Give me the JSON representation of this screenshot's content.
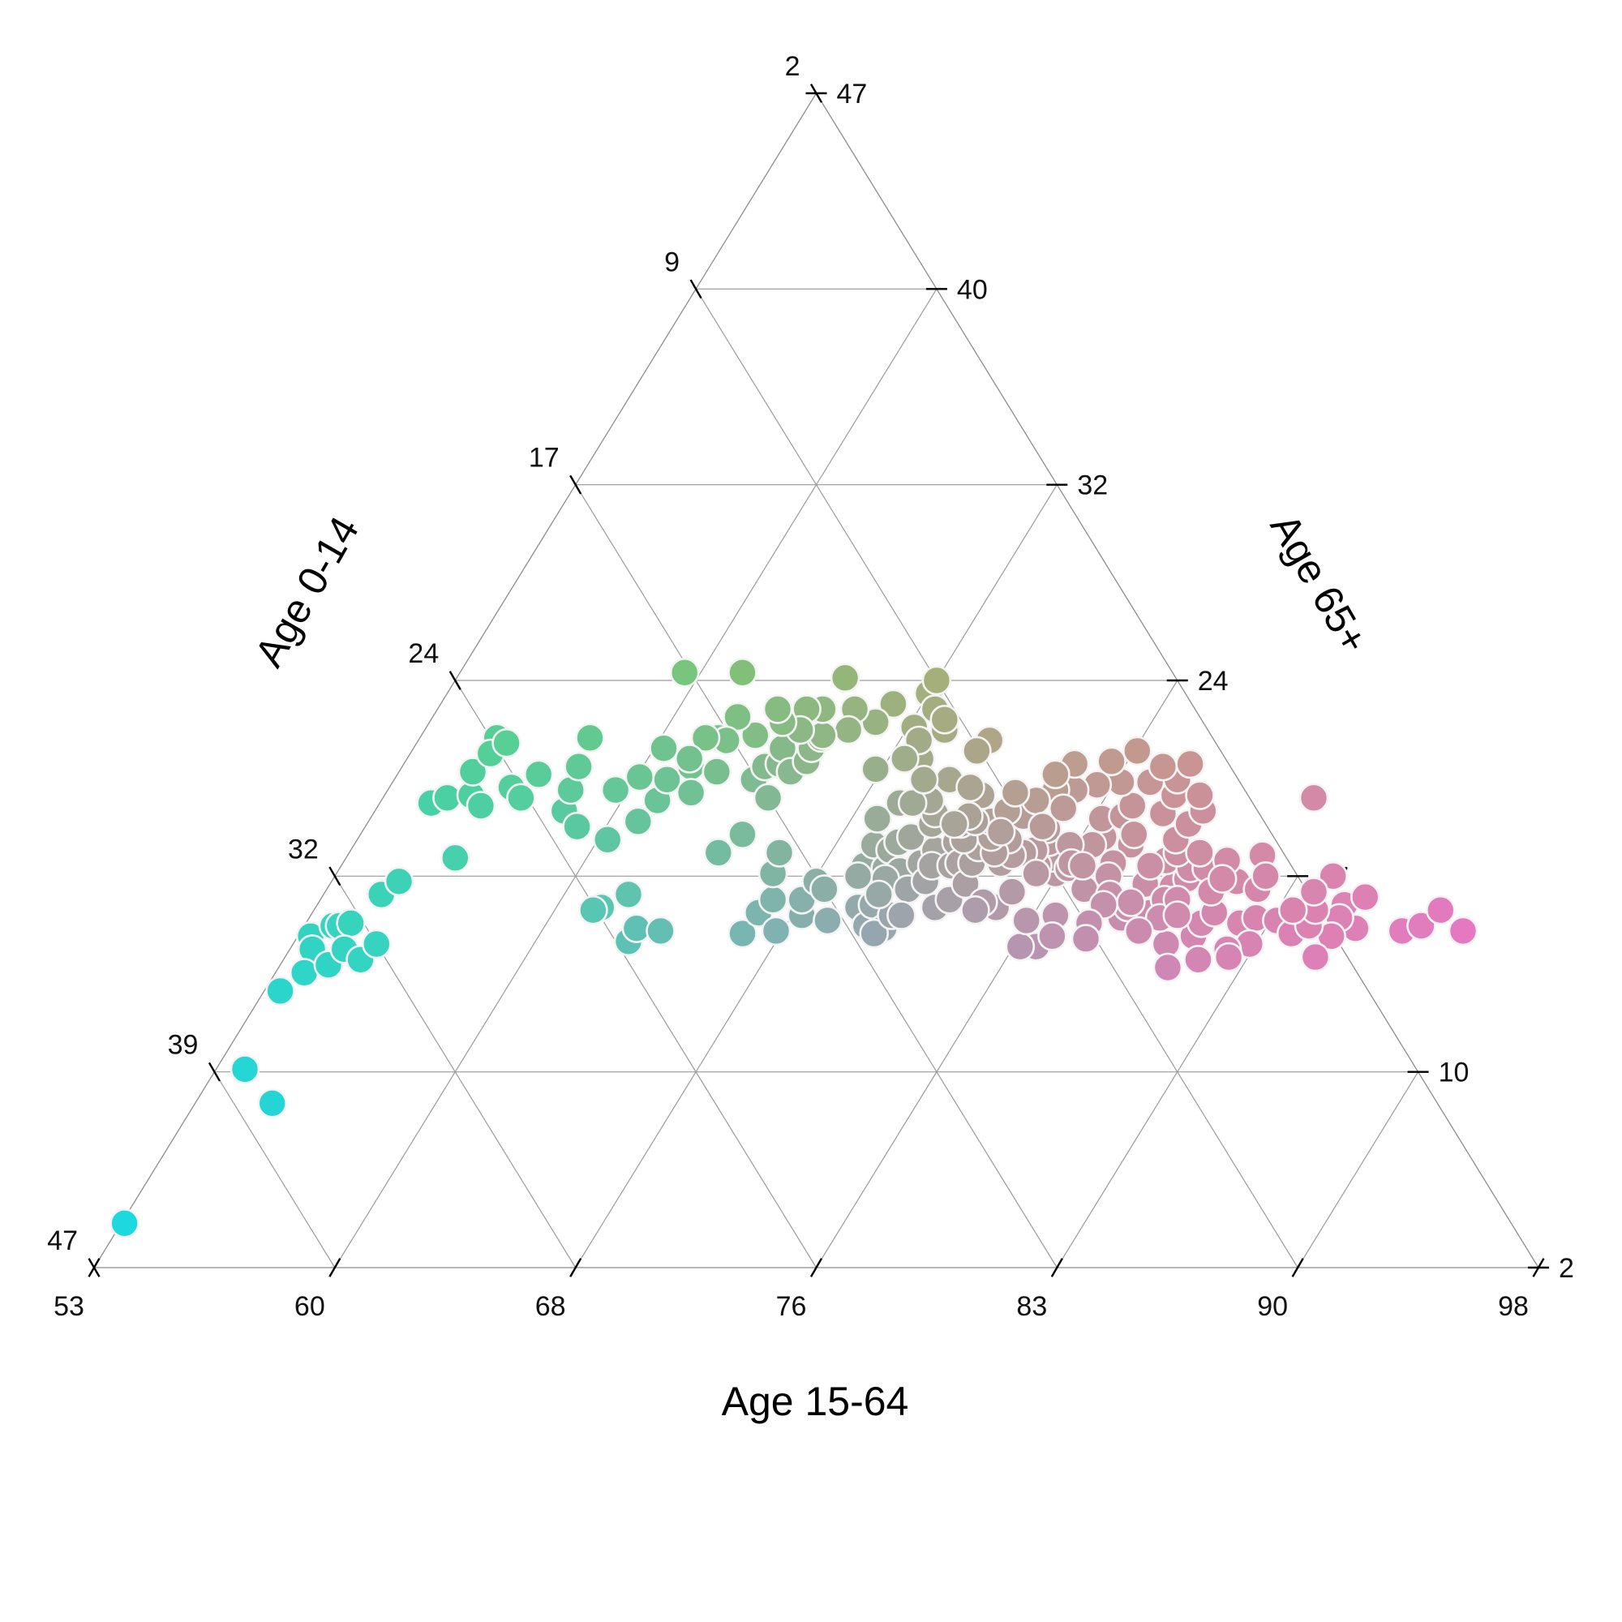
{
  "chart_data": {
    "type": "scatter",
    "subtype": "ternary",
    "title": "",
    "axes": {
      "a": {
        "label": "Age 0-14",
        "side": "left",
        "range": [
          2,
          47
        ],
        "ticks": [
          2,
          9,
          17,
          24,
          32,
          39,
          47
        ]
      },
      "b": {
        "label": "Age 15-64",
        "side": "bottom",
        "range": [
          53,
          98
        ],
        "ticks": [
          53,
          60,
          68,
          76,
          83,
          90,
          98
        ]
      },
      "c": {
        "label": "Age 65+",
        "side": "right",
        "range": [
          2,
          47
        ],
        "ticks": [
          2,
          10,
          17,
          24,
          32,
          40,
          47
        ]
      }
    },
    "gridlines": [
      9.5,
      17,
      24.5,
      32,
      39.5
    ],
    "grid": true,
    "legend": "none",
    "color_mode": "rgb-mix of the three components",
    "points": [
      [
        45.2,
        52.7,
        2.1
      ],
      [
        38.5,
        58.6,
        2.9
      ],
      [
        38.3,
        57.3,
        4.4
      ],
      [
        35.9,
        61.6,
        2.5
      ],
      [
        33.9,
        63.7,
        2.4
      ],
      [
        34.1,
        63.2,
        2.7
      ],
      [
        33.0,
        64.1,
        2.9
      ],
      [
        34.8,
        62.3,
        2.9
      ],
      [
        33.9,
        62.6,
        3.5
      ],
      [
        32.8,
        64.1,
        3.1
      ],
      [
        32.4,
        64.2,
        3.4
      ],
      [
        33.1,
        63.2,
        3.7
      ],
      [
        30.9,
        65.3,
        3.8
      ],
      [
        30.1,
        65.8,
        4.1
      ],
      [
        32.8,
        62.8,
        4.4
      ],
      [
        32.0,
        63.4,
        4.6
      ],
      [
        27.6,
        68.8,
        3.6
      ],
      [
        27.0,
        69.0,
        4.0
      ],
      [
        26.2,
        69.1,
        4.7
      ],
      [
        25.7,
        70.0,
        4.3
      ],
      [
        26.1,
        68.7,
        5.2
      ],
      [
        24.3,
        71.3,
        4.4
      ],
      [
        24.8,
        70.7,
        4.5
      ],
      [
        24.1,
        71.1,
        4.8
      ],
      [
        24.8,
        69.4,
        5.8
      ],
      [
        24.7,
        69.0,
        6.3
      ],
      [
        27.9,
        66.7,
        5.4
      ],
      [
        23.7,
        69.9,
        6.4
      ],
      [
        23.6,
        68.5,
        7.9
      ],
      [
        23.0,
        69.3,
        7.7
      ],
      [
        22.3,
        70.2,
        7.5
      ],
      [
        21.4,
        71.3,
        7.3
      ],
      [
        23.5,
        67.9,
        8.6
      ],
      [
        22.8,
        67.4,
        9.8
      ],
      [
        24.3,
        64.8,
        10.9
      ],
      [
        24.6,
        64.7,
        10.7
      ],
      [
        24.1,
        63.5,
        12.4
      ],
      [
        23.2,
        65.3,
        11.5
      ],
      [
        23.6,
        64.0,
        12.4
      ],
      [
        22.9,
        63.9,
        13.2
      ],
      [
        21.6,
        69.3,
        9.1
      ],
      [
        21.5,
        68.1,
        10.4
      ],
      [
        20.5,
        68.9,
        10.6
      ],
      [
        19.8,
        69.7,
        10.5
      ],
      [
        18.8,
        70.2,
        11.0
      ],
      [
        19.3,
        69.2,
        11.5
      ],
      [
        18.1,
        70.0,
        11.9
      ],
      [
        17.4,
        71.3,
        11.3
      ],
      [
        19.6,
        66.9,
        13.5
      ],
      [
        18.5,
        67.6,
        13.9
      ],
      [
        17.1,
        69.7,
        13.2
      ],
      [
        16.5,
        70.2,
        13.3
      ],
      [
        17.0,
        69.0,
        14.0
      ],
      [
        16.0,
        70.3,
        13.7
      ],
      [
        15.6,
        70.9,
        13.5
      ],
      [
        15.8,
        70.0,
        14.2
      ],
      [
        15.1,
        70.4,
        14.5
      ],
      [
        14.7,
        70.9,
        14.4
      ],
      [
        14.2,
        71.3,
        14.5
      ],
      [
        20.4,
        63.8,
        15.8
      ],
      [
        19.5,
        64.6,
        15.9
      ],
      [
        18.8,
        65.1,
        16.1
      ],
      [
        19.3,
        63.9,
        16.8
      ],
      [
        18.2,
        64.5,
        17.3
      ],
      [
        17.9,
        65.1,
        17.0
      ],
      [
        17.1,
        65.8,
        17.1
      ],
      [
        17.5,
        64.3,
        18.2
      ],
      [
        16.3,
        64.8,
        18.9
      ],
      [
        16.4,
        64.1,
        19.5
      ],
      [
        15.8,
        64.9,
        19.3
      ],
      [
        15.9,
        64.0,
        20.1
      ],
      [
        16.3,
        63.8,
        19.9
      ],
      [
        15.4,
        64.5,
        20.1
      ],
      [
        17.0,
        65.5,
        17.5
      ],
      [
        18.3,
        66.1,
        15.6
      ],
      [
        17.7,
        66.9,
        15.4
      ],
      [
        15.3,
        66.4,
        18.3
      ],
      [
        14.6,
        67.2,
        18.2
      ],
      [
        14.7,
        66.3,
        19.0
      ],
      [
        14.2,
        67.0,
        18.8
      ],
      [
        13.8,
        67.3,
        18.9
      ],
      [
        14.3,
        66.2,
        19.5
      ],
      [
        14.9,
        65.9,
        19.2
      ],
      [
        15.4,
        65.3,
        19.3
      ],
      [
        14.4,
        65.5,
        20.1
      ],
      [
        15.1,
        64.5,
        20.4
      ],
      [
        13.5,
        66.5,
        20.0
      ],
      [
        13.7,
        65.8,
        20.5
      ],
      [
        12.8,
        67.0,
        20.2
      ],
      [
        13.2,
        66.4,
        20.4
      ],
      [
        12.6,
        66.4,
        21.0
      ],
      [
        12.0,
        67.3,
        20.7
      ],
      [
        12.3,
        66.5,
        21.2
      ],
      [
        13.9,
        64.8,
        21.3
      ],
      [
        13.3,
        65.1,
        21.6
      ],
      [
        12.5,
        65.7,
        21.8
      ],
      [
        11.9,
        66.5,
        21.6
      ],
      [
        11.4,
        67.1,
        21.5
      ],
      [
        12.0,
        64.8,
        23.2
      ],
      [
        12.3,
        65.0,
        22.7
      ],
      [
        11.0,
        66.5,
        22.5
      ],
      [
        11.2,
        65.4,
        23.4
      ],
      [
        12.7,
        64.7,
        22.6
      ],
      [
        15.7,
        66.0,
        18.3
      ],
      [
        13.3,
        67.5,
        19.2
      ],
      [
        14.0,
        68.2,
        17.8
      ],
      [
        13.0,
        68.8,
        18.2
      ],
      [
        9.0,
        71.2,
        19.8
      ],
      [
        10.2,
        71.6,
        18.2
      ],
      [
        11.1,
        71.7,
        17.2
      ],
      [
        10.0,
        73.0,
        17.0
      ],
      [
        10.1,
        72.4,
        17.5
      ],
      [
        11.3,
        72.6,
        16.1
      ],
      [
        12.2,
        71.9,
        15.9
      ],
      [
        12.6,
        72.4,
        15.0
      ],
      [
        13.2,
        71.6,
        15.2
      ],
      [
        14.1,
        71.4,
        14.5
      ],
      [
        13.6,
        72.4,
        14.0
      ],
      [
        14.1,
        72.4,
        13.5
      ],
      [
        14.7,
        71.6,
        13.7
      ],
      [
        15.1,
        71.9,
        13.0
      ],
      [
        15.0,
        72.4,
        12.6
      ],
      [
        16.2,
        71.4,
        12.4
      ],
      [
        16.4,
        72.1,
        11.5
      ],
      [
        17.2,
        71.2,
        11.6
      ],
      [
        17.8,
        71.3,
        10.9
      ],
      [
        18.7,
        70.5,
        10.8
      ],
      [
        19.3,
        70.9,
        9.8
      ],
      [
        20.6,
        69.8,
        9.6
      ],
      [
        15.4,
        73.8,
        10.8
      ],
      [
        17.2,
        73.8,
        9.0
      ],
      [
        12.3,
        73.6,
        14.1
      ],
      [
        9.5,
        73.5,
        17.0
      ],
      [
        11.5,
        70.5,
        18.0
      ],
      [
        9.5,
        66.1,
        24.4
      ],
      [
        9.3,
        66.7,
        24.0
      ],
      [
        9.1,
        67.3,
        23.6
      ],
      [
        8.9,
        67.8,
        23.3
      ],
      [
        9.9,
        66.4,
        23.7
      ],
      [
        9.7,
        67.0,
        23.3
      ],
      [
        10.1,
        66.9,
        23.0
      ],
      [
        10.5,
        66.8,
        22.7
      ],
      [
        10.3,
        67.4,
        22.3
      ],
      [
        11.0,
        66.9,
        22.1
      ],
      [
        10.8,
        67.5,
        21.7
      ],
      [
        11.7,
        67.4,
        20.9
      ],
      [
        11.5,
        68.0,
        20.5
      ],
      [
        12.4,
        68.0,
        19.6
      ],
      [
        12.1,
        68.4,
        19.5
      ],
      [
        10.5,
        68.1,
        21.4
      ],
      [
        11.0,
        68.1,
        20.9
      ],
      [
        10.3,
        69.1,
        20.6
      ],
      [
        9.4,
        68.3,
        22.3
      ],
      [
        9.8,
        68.5,
        21.7
      ],
      [
        10.1,
        66.1,
        23.8
      ],
      [
        9.0,
        66.3,
        24.7
      ],
      [
        10.4,
        67.7,
        21.9
      ],
      [
        11.1,
        68.3,
        20.6
      ],
      [
        11.7,
        68.0,
        20.3
      ],
      [
        9.6,
        70.8,
        19.6
      ],
      [
        11.0,
        69.7,
        19.3
      ],
      [
        12.0,
        68.9,
        19.1
      ],
      [
        13.1,
        70.1,
        16.8
      ],
      [
        12.6,
        68.8,
        18.6
      ],
      [
        10.5,
        69.4,
        20.1
      ],
      [
        11.2,
        71.2,
        17.6
      ],
      [
        10.0,
        72.0,
        18.0
      ],
      [
        12.0,
        70.5,
        17.5
      ],
      [
        11.8,
        69.7,
        18.5
      ],
      [
        8.9,
        65.5,
        25.6
      ],
      [
        8.3,
        64.4,
        27.3
      ],
      [
        7.9,
        64.8,
        27.3
      ],
      [
        7.3,
        64.6,
        28.1
      ],
      [
        6.9,
        65.7,
        27.4
      ],
      [
        6.1,
        65.6,
        28.3
      ],
      [
        5.8,
        66.6,
        27.6
      ],
      [
        5.5,
        65.9,
        28.6
      ],
      [
        5.2,
        66.3,
        28.5
      ],
      [
        5.3,
        66.9,
        27.8
      ],
      [
        4.7,
        66.3,
        29.0
      ],
      [
        4.6,
        66.9,
        28.5
      ],
      [
        6.4,
        66.4,
        27.2
      ],
      [
        6.6,
        67.2,
        26.2
      ],
      [
        7.3,
        67.5,
        25.2
      ],
      [
        7.8,
        67.2,
        25.0
      ],
      [
        8.5,
        67.2,
        24.3
      ],
      [
        8.8,
        66.5,
        24.7
      ],
      [
        7.0,
        68.2,
        24.8
      ],
      [
        6.3,
        68.3,
        25.4
      ],
      [
        5.8,
        68.7,
        25.5
      ],
      [
        5.0,
        68.4,
        26.6
      ],
      [
        4.3,
        69.1,
        26.6
      ],
      [
        3.9,
        69.7,
        26.4
      ],
      [
        4.8,
        69.6,
        25.6
      ],
      [
        5.7,
        69.6,
        24.7
      ],
      [
        6.5,
        69.5,
        24.0
      ],
      [
        7.3,
        69.3,
        23.4
      ],
      [
        7.9,
        69.3,
        22.8
      ],
      [
        8.7,
        68.9,
        22.4
      ],
      [
        9.2,
        69.2,
        21.6
      ],
      [
        8.0,
        68.6,
        23.4
      ],
      [
        6.3,
        67.6,
        26.1
      ],
      [
        7.5,
        66.5,
        26.0
      ],
      [
        6.6,
        65.1,
        28.3
      ],
      [
        7.9,
        66.0,
        26.1
      ],
      [
        8.5,
        66.4,
        25.1
      ],
      [
        8.2,
        65.3,
        26.5
      ],
      [
        9.0,
        67.9,
        23.1
      ],
      [
        5.1,
        67.4,
        27.5
      ],
      [
        4.4,
        68.0,
        27.6
      ],
      [
        3.7,
        68.5,
        27.8
      ],
      [
        3.5,
        69.1,
        27.4
      ],
      [
        4.1,
        70.2,
        25.7
      ],
      [
        3.2,
        70.3,
        26.5
      ],
      [
        4.6,
        70.8,
        24.6
      ],
      [
        5.6,
        70.4,
        24.0
      ],
      [
        6.8,
        70.3,
        22.9
      ],
      [
        7.6,
        69.9,
        22.5
      ],
      [
        4.7,
        64.2,
        31.1
      ],
      [
        4.1,
        64.4,
        31.5
      ],
      [
        3.5,
        64.3,
        32.2
      ],
      [
        3.3,
        63.8,
        32.9
      ],
      [
        4.8,
        63.4,
        31.8
      ],
      [
        5.6,
        63.2,
        31.2
      ],
      [
        6.4,
        63.7,
        29.9
      ],
      [
        5.9,
        64.2,
        29.9
      ],
      [
        5.3,
        64.6,
        30.1
      ],
      [
        6.7,
        62.8,
        30.5
      ],
      [
        7.4,
        63.4,
        29.2
      ],
      [
        7.1,
        64.4,
        28.5
      ],
      [
        8.0,
        63.9,
        28.1
      ],
      [
        5.0,
        65.4,
        29.6
      ],
      [
        6.2,
        65.1,
        28.7
      ],
      [
        4.0,
        65.8,
        30.2
      ],
      [
        3.5,
        65.5,
        31.0
      ],
      [
        3.9,
        66.6,
        29.5
      ],
      [
        7.7,
        65.0,
        27.3
      ],
      [
        8.6,
        64.9,
        26.5
      ],
      [
        5.7,
        62.9,
        31.4
      ],
      [
        6.5,
        64.5,
        29.0
      ],
      [
        7.8,
        62.5,
        29.7
      ],
      [
        4.4,
        65.9,
        29.7
      ],
      [
        1.2,
        64.0,
        34.8
      ],
      [
        1.1,
        64.9,
        34.0
      ],
      [
        0.9,
        66.0,
        33.1
      ],
      [
        1.5,
        64.4,
        34.1
      ],
      [
        2.1,
        63.7,
        34.2
      ],
      [
        2.6,
        64.1,
        33.3
      ],
      [
        2.1,
        64.7,
        33.2
      ],
      [
        2.8,
        64.7,
        32.5
      ],
      [
        1.8,
        65.4,
        32.8
      ],
      [
        3.0,
        62.9,
        34.1
      ],
      [
        0.3,
        65.2,
        34.5
      ],
      [
        -0.2,
        63.9,
        36.3
      ],
      [
        -0.9,
        64.1,
        36.8
      ],
      [
        -2.1,
        63.9,
        38.2
      ],
      [
        -1.8,
        64.7,
        37.1
      ],
      [
        2.7,
        66.8,
        30.5
      ],
      [
        3.0,
        66.0,
        31.0
      ],
      [
        0.0,
        69.0,
        31.0
      ],
      [
        11.5,
        63.3,
        25.2
      ],
      [
        12.0,
        63.3,
        24.7
      ],
      [
        10.3,
        64.5,
        25.2
      ],
      [
        9.4,
        64.2,
        26.4
      ],
      [
        9.8,
        63.6,
        26.6
      ],
      [
        11.3,
        64.3,
        24.4
      ],
      [
        10.8,
        63.7,
        25.5
      ]
    ]
  }
}
